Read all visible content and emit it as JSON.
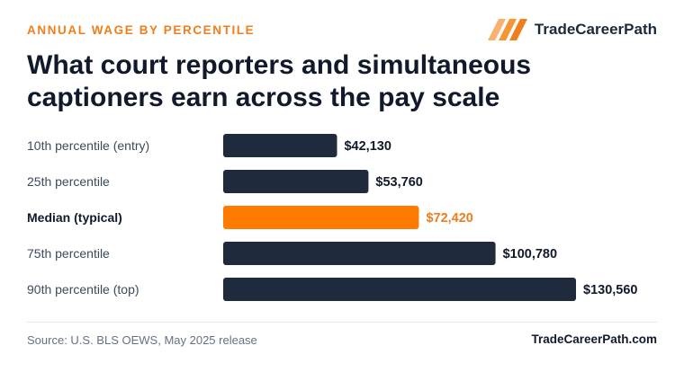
{
  "header": {
    "eyebrow": "ANNUAL WAGE BY PERCENTILE",
    "brand_name": "TradeCareerPath",
    "title": "What court reporters and simultaneous captioners earn across the pay scale"
  },
  "footer": {
    "source": "Source: U.S. BLS OEWS, May 2025 release",
    "site": "TradeCareerPath.com"
  },
  "colors": {
    "bar": "#1f2a3d",
    "highlight": "#ff7b00",
    "label": "#3d4a5c",
    "value": "#111a2b",
    "accent_text": "#f07e1a"
  },
  "chart_data": {
    "type": "bar",
    "orientation": "horizontal",
    "categories": [
      "10th percentile (entry)",
      "25th percentile",
      "Median (typical)",
      "75th percentile",
      "90th percentile (top)"
    ],
    "values": [
      42130,
      53760,
      72420,
      100780,
      130560
    ],
    "value_labels": [
      "$42,130",
      "$53,760",
      "$72,420",
      "$100,780",
      "$130,560"
    ],
    "highlight_index": 2,
    "title": "What court reporters and simultaneous captioners earn across the pay scale",
    "xlabel": "",
    "ylabel": "",
    "grid": false,
    "legend": "none"
  }
}
